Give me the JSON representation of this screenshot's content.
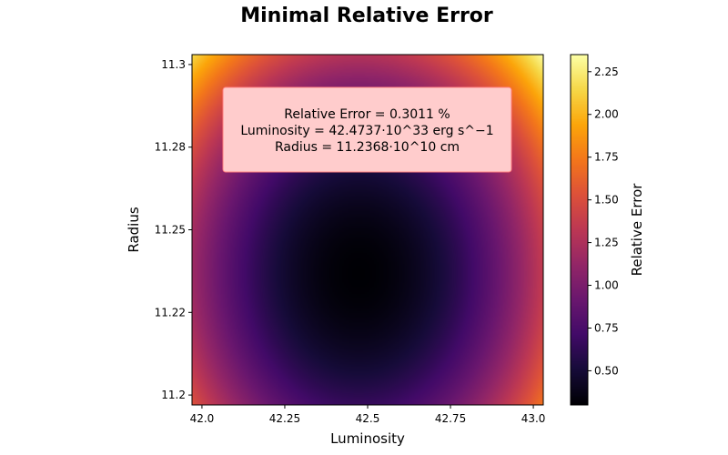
{
  "chart_data": {
    "type": "heatmap",
    "title": "Minimal Relative Error",
    "xlabel": "Luminosity",
    "ylabel": "Radius",
    "colorbar_label": "Relative Error",
    "colormap": "inferno",
    "xlim": [
      41.97,
      43.03
    ],
    "ylim": [
      11.197,
      11.303
    ],
    "x_ticks": [
      {
        "value": 42.0,
        "label": "42.0"
      },
      {
        "value": 42.25,
        "label": "42.25"
      },
      {
        "value": 42.5,
        "label": "42.5"
      },
      {
        "value": 42.75,
        "label": "42.75"
      },
      {
        "value": 43.0,
        "label": "43.0"
      }
    ],
    "y_ticks": [
      {
        "value": 11.2,
        "label": "11.2"
      },
      {
        "value": 11.225,
        "label": "11.22"
      },
      {
        "value": 11.25,
        "label": "11.25"
      },
      {
        "value": 11.275,
        "label": "11.28"
      },
      {
        "value": 11.3,
        "label": "11.3"
      }
    ],
    "colorbar_range": [
      0.3,
      2.35
    ],
    "colorbar_ticks": [
      {
        "value": 0.5,
        "label": "0.50"
      },
      {
        "value": 0.75,
        "label": "0.75"
      },
      {
        "value": 1.0,
        "label": "1.00"
      },
      {
        "value": 1.25,
        "label": "1.25"
      },
      {
        "value": 1.5,
        "label": "1.50"
      },
      {
        "value": 1.75,
        "label": "1.75"
      },
      {
        "value": 2.0,
        "label": "2.00"
      },
      {
        "value": 2.25,
        "label": "2.25"
      }
    ],
    "minimum": {
      "x": 42.4737,
      "y": 11.2368,
      "value": 0.3011
    },
    "corner_max": 2.35,
    "annotation": {
      "lines": [
        "Relative Error = 0.3011 %",
        "Luminosity = 42.4737·10^33 erg s^−1",
        "Radius = 11.2368·10^10 cm"
      ],
      "box_color": "#ffcccc",
      "edge_color": "#ff8080"
    }
  }
}
